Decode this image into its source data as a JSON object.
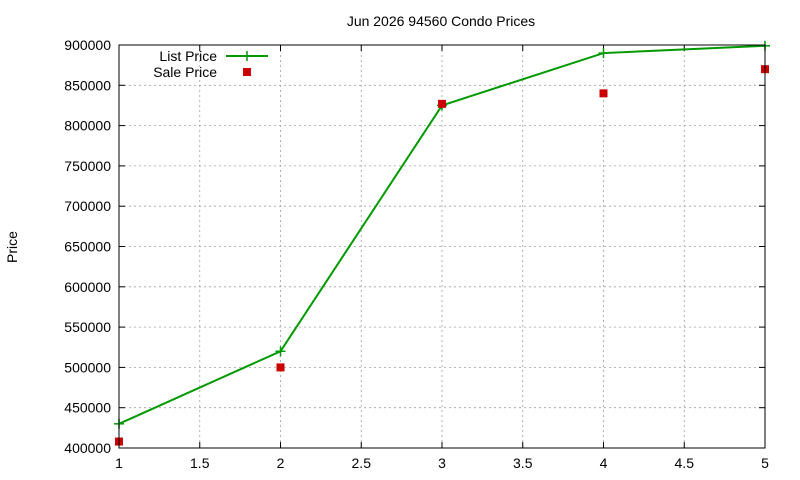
{
  "chart_data": {
    "type": "line",
    "title": "Jun 2026 94560 Condo Prices",
    "xlabel": "",
    "ylabel": "Price",
    "xlim": [
      1,
      5
    ],
    "ylim": [
      400000,
      900000
    ],
    "x_ticks": [
      1,
      1.5,
      2,
      2.5,
      3,
      3.5,
      4,
      4.5,
      5
    ],
    "y_ticks": [
      400000,
      450000,
      500000,
      550000,
      600000,
      650000,
      700000,
      750000,
      800000,
      850000,
      900000
    ],
    "grid": true,
    "legend_position": "top-left",
    "series": [
      {
        "name": "List Price",
        "style": "line-points",
        "marker": "plus",
        "color": "#009900",
        "x": [
          1,
          2,
          3,
          4,
          5
        ],
        "values": [
          430000,
          520000,
          825000,
          890000,
          899000
        ]
      },
      {
        "name": "Sale Price",
        "style": "points",
        "marker": "square",
        "color": "#cc0000",
        "x": [
          1,
          2,
          3,
          4,
          5
        ],
        "values": [
          408000,
          500000,
          827000,
          840000,
          870000
        ]
      }
    ]
  }
}
